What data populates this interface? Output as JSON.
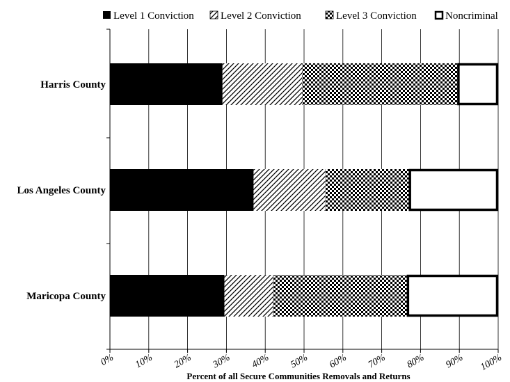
{
  "chart_data": {
    "type": "bar",
    "orientation": "horizontal",
    "stacked": true,
    "categories": [
      "Harris County",
      "Los Angeles County",
      "Maricopa County"
    ],
    "series": [
      {
        "name": "Level 1 Conviction",
        "values": [
          29,
          37,
          29.5
        ],
        "pattern": "solid"
      },
      {
        "name": "Level 2 Conviction",
        "values": [
          20.5,
          18.5,
          12.5
        ],
        "pattern": "diagonal-hatch"
      },
      {
        "name": "Level 3 Conviction",
        "values": [
          40,
          21.5,
          34.5
        ],
        "pattern": "checker"
      },
      {
        "name": "Noncriminal",
        "values": [
          10.5,
          23,
          23.5
        ],
        "pattern": "outline"
      }
    ],
    "xlabel": "Percent of all Secure Communities Removals and Returns",
    "ylabel": "",
    "xlim": [
      0,
      100
    ],
    "xticks": [
      "0%",
      "10%",
      "20%",
      "30%",
      "40%",
      "50%",
      "60%",
      "70%",
      "80%",
      "90%",
      "100%"
    ],
    "grid": "vertical",
    "legend_position": "top",
    "colors": {
      "fill": "#000000",
      "background": "#ffffff"
    }
  }
}
